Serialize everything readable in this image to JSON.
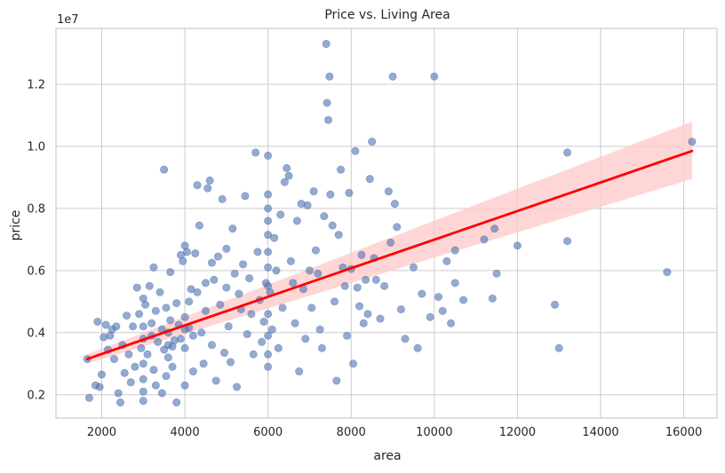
{
  "chart_data": {
    "type": "scatter",
    "title": "Price vs. Living Area",
    "xlabel": "area",
    "ylabel": "price",
    "y_offset_label": "1e7",
    "xlim": [
      900,
      16800
    ],
    "ylim": [
      1250000,
      13800000
    ],
    "xticks": [
      2000,
      4000,
      6000,
      8000,
      10000,
      12000,
      14000,
      16000
    ],
    "xtick_labels": [
      "2000",
      "4000",
      "6000",
      "8000",
      "10000",
      "12000",
      "14000",
      "16000"
    ],
    "yticks": [
      2000000,
      4000000,
      6000000,
      8000000,
      10000000,
      12000000
    ],
    "ytick_labels": [
      "0.2",
      "0.4",
      "0.6",
      "0.8",
      "1.0",
      "1.2"
    ],
    "grid": true,
    "colors": {
      "points": "#4c72b0",
      "regression_line": "#ff0000",
      "confidence_band": "#ffcccc",
      "grid": "#cccccc",
      "frame": "#cccccc"
    },
    "regression": {
      "x": [
        1650,
        16200
      ],
      "y": [
        3150000,
        9850000
      ],
      "ci_lower": [
        3000000,
        8950000
      ],
      "ci_upper": [
        3300000,
        10800000
      ]
    },
    "points": [
      [
        1650,
        3150000
      ],
      [
        1700,
        1900000
      ],
      [
        1850,
        2300000
      ],
      [
        1900,
        4350000
      ],
      [
        1950,
        2250000
      ],
      [
        2000,
        2650000
      ],
      [
        2050,
        3850000
      ],
      [
        2100,
        4250000
      ],
      [
        2150,
        3450000
      ],
      [
        2200,
        3900000
      ],
      [
        2250,
        4100000
      ],
      [
        2300,
        3150000
      ],
      [
        2350,
        4200000
      ],
      [
        2400,
        2050000
      ],
      [
        2450,
        1750000
      ],
      [
        2500,
        3600000
      ],
      [
        2550,
        2700000
      ],
      [
        2600,
        4550000
      ],
      [
        2650,
        3300000
      ],
      [
        2700,
        2400000
      ],
      [
        2750,
        4200000
      ],
      [
        2800,
        2900000
      ],
      [
        2850,
        5450000
      ],
      [
        2900,
        4600000
      ],
      [
        2950,
        3500000
      ],
      [
        3000,
        5100000
      ],
      [
        3000,
        4200000
      ],
      [
        3000,
        3800000
      ],
      [
        3000,
        3000000
      ],
      [
        3000,
        2500000
      ],
      [
        3000,
        2100000
      ],
      [
        3000,
        1800000
      ],
      [
        3050,
        4900000
      ],
      [
        3100,
        3300000
      ],
      [
        3150,
        5500000
      ],
      [
        3200,
        4300000
      ],
      [
        3200,
        3900000
      ],
      [
        3250,
        6100000
      ],
      [
        3250,
        2800000
      ],
      [
        3300,
        4700000
      ],
      [
        3300,
        2300000
      ],
      [
        3350,
        3700000
      ],
      [
        3400,
        5300000
      ],
      [
        3450,
        4100000
      ],
      [
        3450,
        2050000
      ],
      [
        3500,
        9250000
      ],
      [
        3500,
        3450000
      ],
      [
        3550,
        4800000
      ],
      [
        3550,
        2600000
      ],
      [
        3600,
        4000000
      ],
      [
        3600,
        3600000
      ],
      [
        3600,
        3200000
      ],
      [
        3650,
        5950000
      ],
      [
        3650,
        4400000
      ],
      [
        3700,
        3550000
      ],
      [
        3700,
        2900000
      ],
      [
        3750,
        3750000
      ],
      [
        3800,
        4950000
      ],
      [
        3800,
        1750000
      ],
      [
        3850,
        4250000
      ],
      [
        3900,
        6500000
      ],
      [
        3900,
        3800000
      ],
      [
        3950,
        6300000
      ],
      [
        4000,
        6800000
      ],
      [
        4000,
        4500000
      ],
      [
        4000,
        4100000
      ],
      [
        4000,
        3500000
      ],
      [
        4000,
        2300000
      ],
      [
        4050,
        6600000
      ],
      [
        4100,
        5000000
      ],
      [
        4100,
        4150000
      ],
      [
        4150,
        5400000
      ],
      [
        4200,
        3900000
      ],
      [
        4200,
        2750000
      ],
      [
        4250,
        6550000
      ],
      [
        4300,
        8750000
      ],
      [
        4300,
        5300000
      ],
      [
        4350,
        7450000
      ],
      [
        4400,
        4000000
      ],
      [
        4450,
        3000000
      ],
      [
        4500,
        5600000
      ],
      [
        4500,
        4700000
      ],
      [
        4550,
        8650000
      ],
      [
        4600,
        8900000
      ],
      [
        4650,
        6250000
      ],
      [
        4650,
        3600000
      ],
      [
        4700,
        5700000
      ],
      [
        4750,
        2450000
      ],
      [
        4800,
        6450000
      ],
      [
        4850,
        4900000
      ],
      [
        4900,
        8300000
      ],
      [
        4950,
        3350000
      ],
      [
        5000,
        6700000
      ],
      [
        5000,
        5450000
      ],
      [
        5050,
        4200000
      ],
      [
        5100,
        3050000
      ],
      [
        5150,
        7350000
      ],
      [
        5200,
        5900000
      ],
      [
        5250,
        2250000
      ],
      [
        5300,
        5250000
      ],
      [
        5350,
        4750000
      ],
      [
        5400,
        6200000
      ],
      [
        5450,
        8400000
      ],
      [
        5500,
        3950000
      ],
      [
        5550,
        5750000
      ],
      [
        5600,
        4600000
      ],
      [
        5650,
        3300000
      ],
      [
        5700,
        9800000
      ],
      [
        5750,
        6600000
      ],
      [
        5800,
        5050000
      ],
      [
        5850,
        3700000
      ],
      [
        5900,
        4350000
      ],
      [
        5950,
        5600000
      ],
      [
        6000,
        9700000
      ],
      [
        6000,
        8450000
      ],
      [
        6000,
        8000000
      ],
      [
        6000,
        7600000
      ],
      [
        6000,
        7150000
      ],
      [
        6000,
        6600000
      ],
      [
        6000,
        6100000
      ],
      [
        6000,
        5500000
      ],
      [
        6000,
        4600000
      ],
      [
        6000,
        3900000
      ],
      [
        6000,
        3300000
      ],
      [
        6000,
        2900000
      ],
      [
        6050,
        5300000
      ],
      [
        6100,
        4100000
      ],
      [
        6150,
        7050000
      ],
      [
        6200,
        6000000
      ],
      [
        6250,
        3500000
      ],
      [
        6300,
        7800000
      ],
      [
        6350,
        4800000
      ],
      [
        6400,
        8850000
      ],
      [
        6450,
        9300000
      ],
      [
        6500,
        9050000
      ],
      [
        6550,
        6300000
      ],
      [
        6600,
        5600000
      ],
      [
        6650,
        4300000
      ],
      [
        6700,
        7600000
      ],
      [
        6750,
        2750000
      ],
      [
        6800,
        8150000
      ],
      [
        6850,
        5400000
      ],
      [
        6900,
        3800000
      ],
      [
        6950,
        8100000
      ],
      [
        7000,
        6000000
      ],
      [
        7050,
        4800000
      ],
      [
        7100,
        8550000
      ],
      [
        7150,
        6650000
      ],
      [
        7200,
        5900000
      ],
      [
        7250,
        4100000
      ],
      [
        7300,
        3500000
      ],
      [
        7350,
        7750000
      ],
      [
        7400,
        13300000
      ],
      [
        7420,
        11400000
      ],
      [
        7450,
        10850000
      ],
      [
        7480,
        12250000
      ],
      [
        7500,
        8450000
      ],
      [
        7550,
        7450000
      ],
      [
        7600,
        5000000
      ],
      [
        7650,
        2450000
      ],
      [
        7700,
        7150000
      ],
      [
        7750,
        9250000
      ],
      [
        7800,
        6100000
      ],
      [
        7850,
        5500000
      ],
      [
        7900,
        3900000
      ],
      [
        7950,
        8500000
      ],
      [
        8000,
        6050000
      ],
      [
        8050,
        3000000
      ],
      [
        8100,
        9850000
      ],
      [
        8150,
        5450000
      ],
      [
        8200,
        4850000
      ],
      [
        8250,
        6500000
      ],
      [
        8300,
        4300000
      ],
      [
        8350,
        5700000
      ],
      [
        8400,
        4600000
      ],
      [
        8450,
        8950000
      ],
      [
        8500,
        10150000
      ],
      [
        8550,
        6400000
      ],
      [
        8600,
        5700000
      ],
      [
        8700,
        4450000
      ],
      [
        8800,
        5500000
      ],
      [
        8900,
        8550000
      ],
      [
        8950,
        6900000
      ],
      [
        9000,
        12250000
      ],
      [
        9050,
        8150000
      ],
      [
        9100,
        7400000
      ],
      [
        9200,
        4750000
      ],
      [
        9300,
        3800000
      ],
      [
        9500,
        6100000
      ],
      [
        9600,
        3500000
      ],
      [
        9700,
        5250000
      ],
      [
        9900,
        4500000
      ],
      [
        10000,
        12250000
      ],
      [
        10100,
        5150000
      ],
      [
        10200,
        4700000
      ],
      [
        10300,
        6300000
      ],
      [
        10400,
        4300000
      ],
      [
        10500,
        6650000
      ],
      [
        10500,
        5600000
      ],
      [
        10700,
        5050000
      ],
      [
        11200,
        7000000
      ],
      [
        11400,
        5100000
      ],
      [
        11450,
        7350000
      ],
      [
        11500,
        5900000
      ],
      [
        12000,
        6800000
      ],
      [
        12900,
        4900000
      ],
      [
        13000,
        3500000
      ],
      [
        13200,
        9800000
      ],
      [
        13200,
        6950000
      ],
      [
        15600,
        5950000
      ],
      [
        16200,
        10150000
      ]
    ]
  }
}
